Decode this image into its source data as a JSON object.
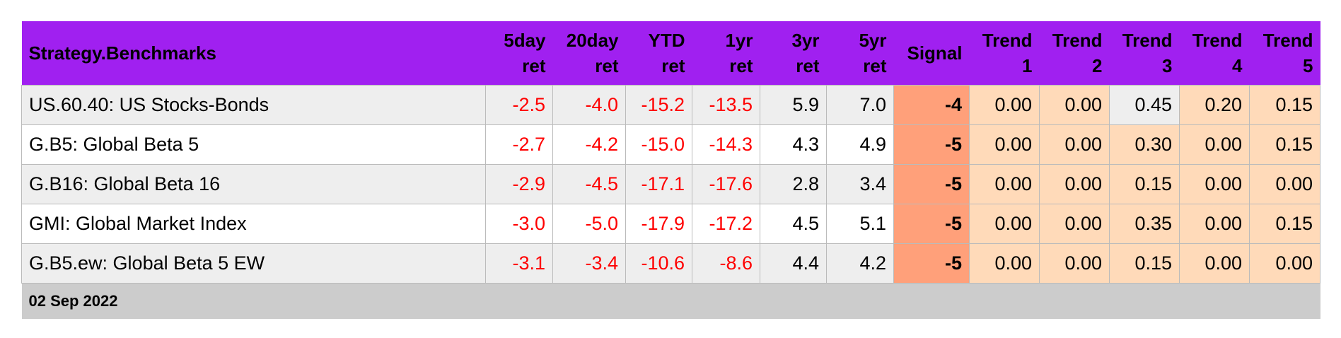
{
  "table": {
    "columns": [
      [
        "Strategy.Benchmarks"
      ],
      [
        "5day",
        "ret"
      ],
      [
        "20day",
        "ret"
      ],
      [
        "YTD",
        "ret"
      ],
      [
        "1yr",
        "ret"
      ],
      [
        "3yr",
        "ret"
      ],
      [
        "5yr",
        "ret"
      ],
      [
        "Signal"
      ],
      [
        "Trend",
        "1"
      ],
      [
        "Trend",
        "2"
      ],
      [
        "Trend",
        "3"
      ],
      [
        "Trend",
        "4"
      ],
      [
        "Trend",
        "5"
      ]
    ],
    "rows": [
      [
        "US.60.40: US Stocks-Bonds",
        "-2.5",
        "-4.0",
        "-15.2",
        "-13.5",
        "5.9",
        "7.0",
        "-4",
        "0.00",
        "0.00",
        "0.45",
        "0.20",
        "0.15"
      ],
      [
        "G.B5: Global Beta 5",
        "-2.7",
        "-4.2",
        "-15.0",
        "-14.3",
        "4.3",
        "4.9",
        "-5",
        "0.00",
        "0.00",
        "0.30",
        "0.00",
        "0.15"
      ],
      [
        "G.B16: Global Beta 16",
        "-2.9",
        "-4.5",
        "-17.1",
        "-17.6",
        "2.8",
        "3.4",
        "-5",
        "0.00",
        "0.00",
        "0.15",
        "0.00",
        "0.00"
      ],
      [
        "GMI: Global Market Index",
        "-3.0",
        "-5.0",
        "-17.9",
        "-17.2",
        "4.5",
        "5.1",
        "-5",
        "0.00",
        "0.00",
        "0.35",
        "0.00",
        "0.15"
      ],
      [
        "G.B5.ew: Global Beta 5 EW",
        "-3.1",
        "-3.4",
        "-10.6",
        "-8.6",
        "4.4",
        "4.2",
        "-5",
        "0.00",
        "0.00",
        "0.15",
        "0.00",
        "0.00"
      ]
    ],
    "footer": "02 Sep 2022"
  }
}
